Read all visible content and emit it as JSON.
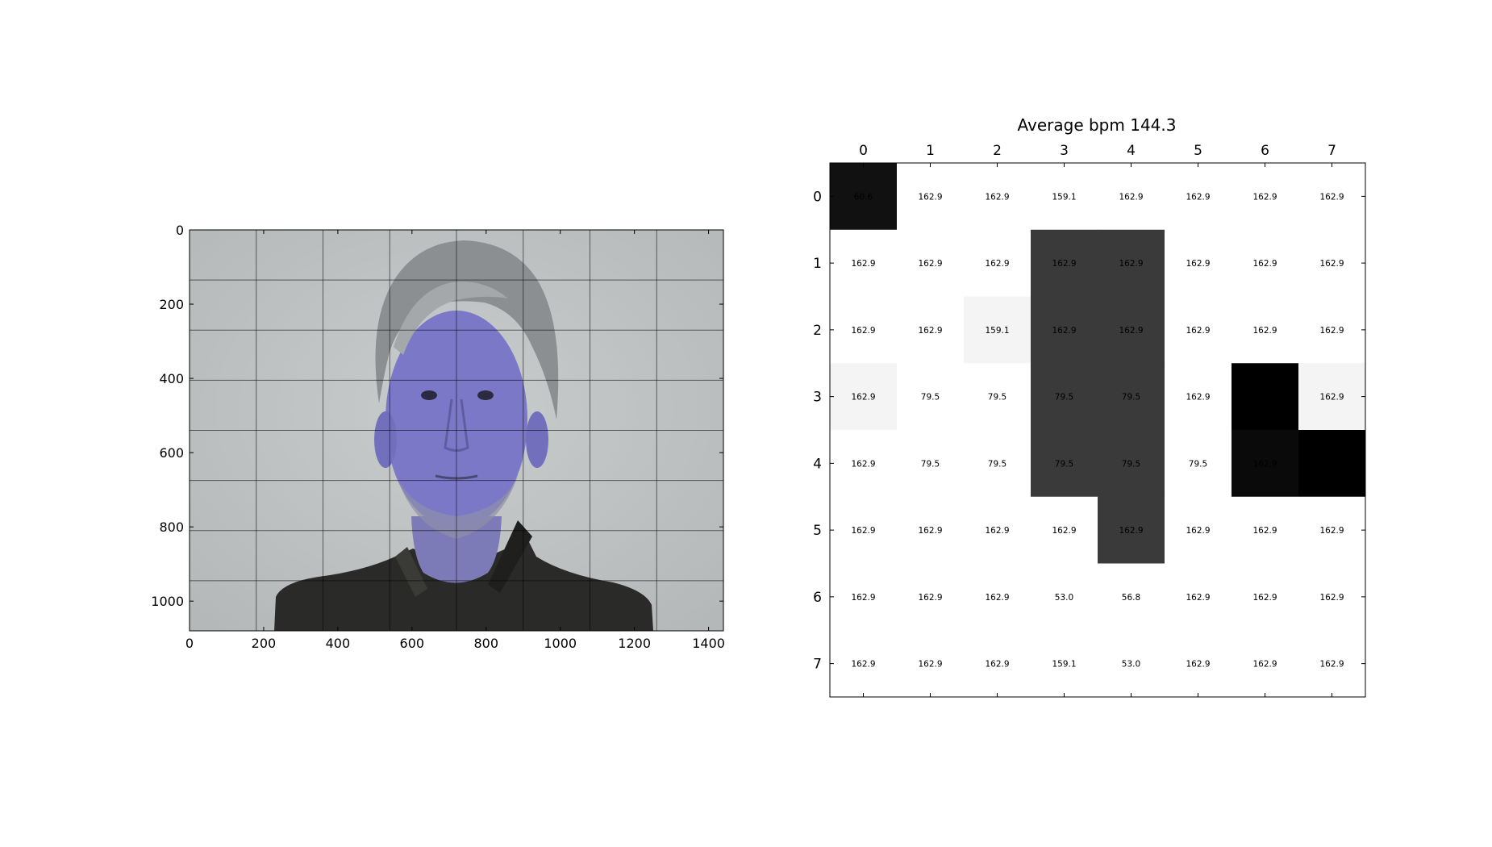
{
  "chart_data": [
    {
      "type": "image",
      "xlim": [
        0,
        1440
      ],
      "ylim": [
        1080,
        0
      ],
      "xticks": [
        "0",
        "200",
        "400",
        "600",
        "800",
        "1000",
        "1200",
        "1400"
      ],
      "yticks": [
        "0",
        "200",
        "400",
        "600",
        "800",
        "1000"
      ],
      "tick_values_x": [
        0,
        200,
        400,
        600,
        800,
        1000,
        1200,
        1400
      ],
      "tick_values_y": [
        0,
        200,
        400,
        600,
        800,
        1000
      ],
      "grid_x": [
        0,
        180,
        360,
        540,
        720,
        900,
        1080,
        1260,
        1440
      ],
      "grid_y": [
        0,
        135,
        270,
        405,
        540,
        675,
        810,
        945,
        1080
      ],
      "colors": {
        "background": "#c3c6c6",
        "face": "#7b78c8",
        "hair": "#8a8d90",
        "jacket": "#2a2a28",
        "grid": "#000000"
      }
    },
    {
      "type": "heatmap",
      "title": "Average bpm 144.3",
      "colormap": "gray_r",
      "x_categories": [
        "0",
        "1",
        "2",
        "3",
        "4",
        "5",
        "6",
        "7"
      ],
      "y_categories": [
        "0",
        "1",
        "2",
        "3",
        "4",
        "5",
        "6",
        "7"
      ],
      "values": [
        [
          60.6,
          162.9,
          162.9,
          159.1,
          162.9,
          162.9,
          162.9,
          162.9
        ],
        [
          162.9,
          162.9,
          162.9,
          162.9,
          162.9,
          162.9,
          162.9,
          162.9
        ],
        [
          162.9,
          162.9,
          159.1,
          162.9,
          162.9,
          162.9,
          162.9,
          162.9
        ],
        [
          162.9,
          79.5,
          79.5,
          79.5,
          79.5,
          162.9,
          162.9,
          162.9
        ],
        [
          162.9,
          79.5,
          79.5,
          79.5,
          79.5,
          79.5,
          162.9,
          162.9
        ],
        [
          162.9,
          162.9,
          162.9,
          162.9,
          162.9,
          162.9,
          162.9,
          162.9
        ],
        [
          162.9,
          162.9,
          162.9,
          53.0,
          56.8,
          162.9,
          162.9,
          162.9
        ],
        [
          162.9,
          162.9,
          162.9,
          159.1,
          53.0,
          162.9,
          162.9,
          162.9
        ]
      ],
      "labels": [
        [
          "60.6",
          "162.9",
          "162.9",
          "159.1",
          "162.9",
          "162.9",
          "162.9",
          "162.9"
        ],
        [
          "162.9",
          "162.9",
          "162.9",
          "162.9",
          "162.9",
          "162.9",
          "162.9",
          "162.9"
        ],
        [
          "162.9",
          "162.9",
          "159.1",
          "162.9",
          "162.9",
          "162.9",
          "162.9",
          "162.9"
        ],
        [
          "162.9",
          "79.5",
          "79.5",
          "79.5",
          "79.5",
          "162.9",
          "162.9",
          "162.9"
        ],
        [
          "162.9",
          "79.5",
          "79.5",
          "79.5",
          "79.5",
          "79.5",
          "162.9",
          "162.9"
        ],
        [
          "162.9",
          "162.9",
          "162.9",
          "162.9",
          "162.9",
          "162.9",
          "162.9",
          "162.9"
        ],
        [
          "162.9",
          "162.9",
          "162.9",
          "53.0",
          "56.8",
          "162.9",
          "162.9",
          "162.9"
        ],
        [
          "162.9",
          "162.9",
          "162.9",
          "159.1",
          "53.0",
          "162.9",
          "162.9",
          "162.9"
        ]
      ],
      "cell_shades": [
        [
          "#111111",
          "#ffffff",
          "#ffffff",
          "#ffffff",
          "#ffffff",
          "#ffffff",
          "#ffffff",
          "#ffffff"
        ],
        [
          "#ffffff",
          "#ffffff",
          "#ffffff",
          "#3a3a3a",
          "#3a3a3a",
          "#ffffff",
          "#ffffff",
          "#ffffff"
        ],
        [
          "#ffffff",
          "#ffffff",
          "#f4f4f4",
          "#3a3a3a",
          "#3a3a3a",
          "#ffffff",
          "#ffffff",
          "#ffffff"
        ],
        [
          "#f4f4f4",
          "#ffffff",
          "#ffffff",
          "#3a3a3a",
          "#3a3a3a",
          "#ffffff",
          "#000000",
          "#f4f4f4"
        ],
        [
          "#ffffff",
          "#ffffff",
          "#ffffff",
          "#3a3a3a",
          "#3a3a3a",
          "#ffffff",
          "#0a0a0a",
          "#000000"
        ],
        [
          "#ffffff",
          "#ffffff",
          "#ffffff",
          "#ffffff",
          "#3a3a3a",
          "#ffffff",
          "#ffffff",
          "#ffffff"
        ],
        [
          "#ffffff",
          "#ffffff",
          "#ffffff",
          "#ffffff",
          "#ffffff",
          "#ffffff",
          "#ffffff",
          "#ffffff"
        ],
        [
          "#ffffff",
          "#ffffff",
          "#ffffff",
          "#ffffff",
          "#ffffff",
          "#ffffff",
          "#ffffff",
          "#ffffff"
        ]
      ]
    }
  ]
}
